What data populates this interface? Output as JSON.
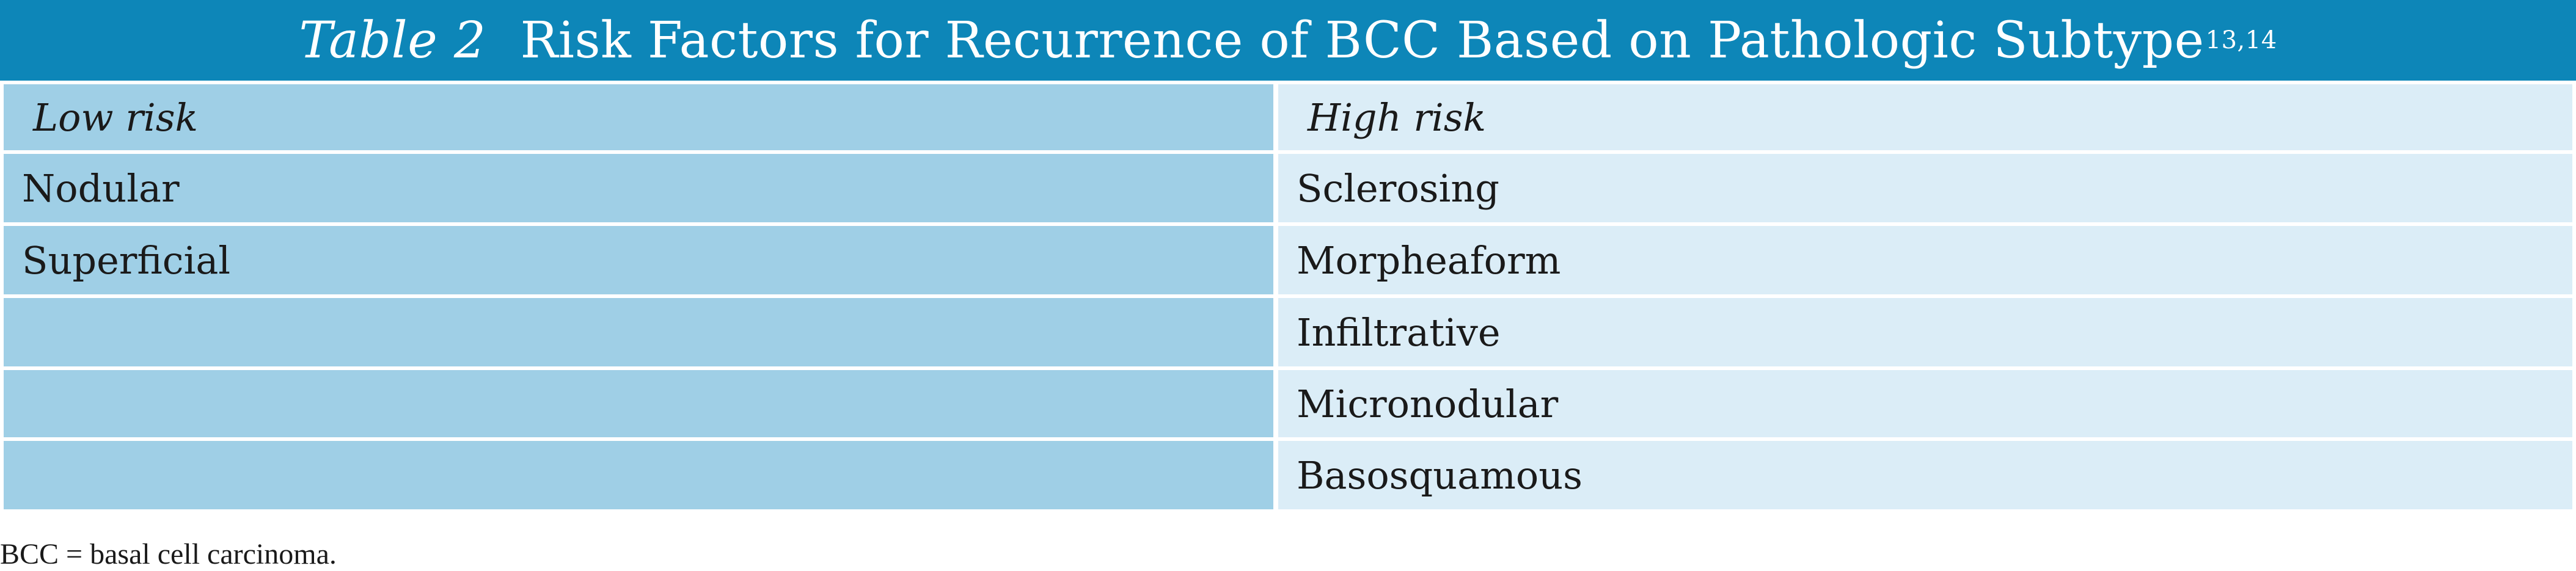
{
  "table": {
    "number": "Table 2",
    "title": "Risk Factors for Recurrence of BCC Based on Pathologic Subtype",
    "title_superscript": "13,14",
    "header_color": "#0d86b8",
    "columns": [
      "Low risk",
      "High risk"
    ],
    "rows": [
      [
        "Nodular",
        "Sclerosing"
      ],
      [
        "Superficial",
        "Morpheaform"
      ],
      [
        "",
        "Infiltrative"
      ],
      [
        "",
        "Micronodular"
      ],
      [
        "",
        "Basosquamous"
      ]
    ]
  },
  "footnote": "BCC = basal cell carcinoma."
}
